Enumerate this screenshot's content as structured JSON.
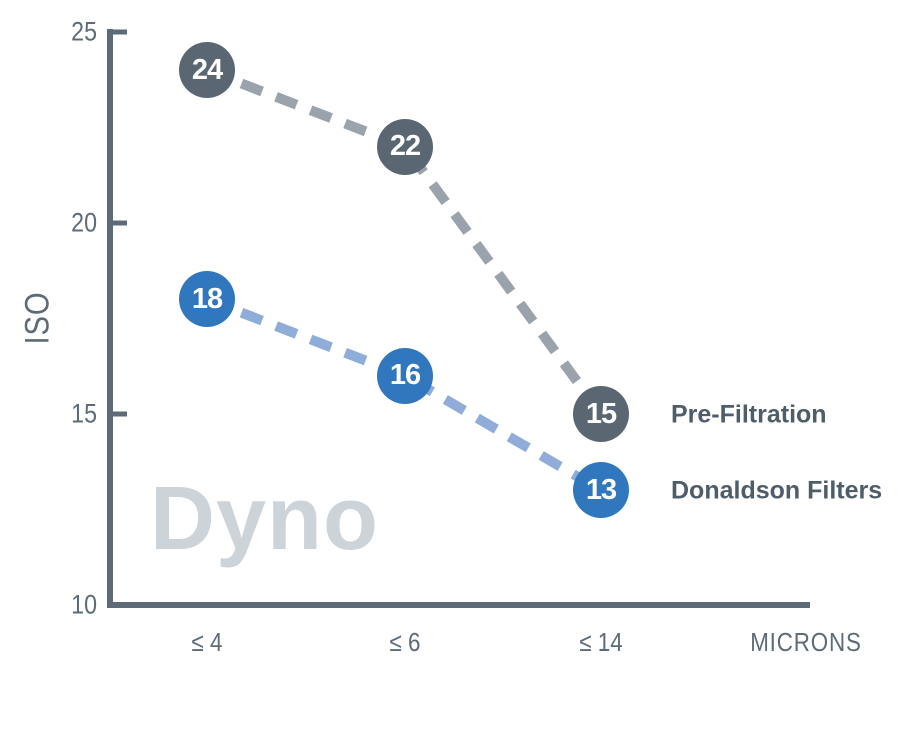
{
  "chart_data": {
    "type": "line",
    "style": "dashed-lines-with-circle-markers",
    "title": "",
    "ylabel": "ISO",
    "xlabel": "MICRONS",
    "categories": [
      "≤ 4",
      "≤ 6",
      "≤ 14"
    ],
    "y_ticks": [
      25,
      20,
      15,
      10
    ],
    "ylim": [
      10,
      25
    ],
    "grid": false,
    "watermark": "Dyno",
    "legend_position": "right-of-last-point",
    "series": [
      {
        "name": "Pre-Filtration",
        "values": [
          24,
          22,
          15
        ],
        "marker_color": "#5a6672",
        "line_color": "#9aa2ab"
      },
      {
        "name": "Donaldson Filters",
        "values": [
          18,
          16,
          13
        ],
        "marker_color": "#3177bd",
        "line_color": "#90acd8"
      }
    ]
  },
  "colors": {
    "background": "#ffffff",
    "axis": "#5d6b79",
    "tick_label": "#5d6b79",
    "legend_text": "#4d5d6a",
    "marker_text": "#ffffff",
    "watermark": "#ccd3d9"
  }
}
